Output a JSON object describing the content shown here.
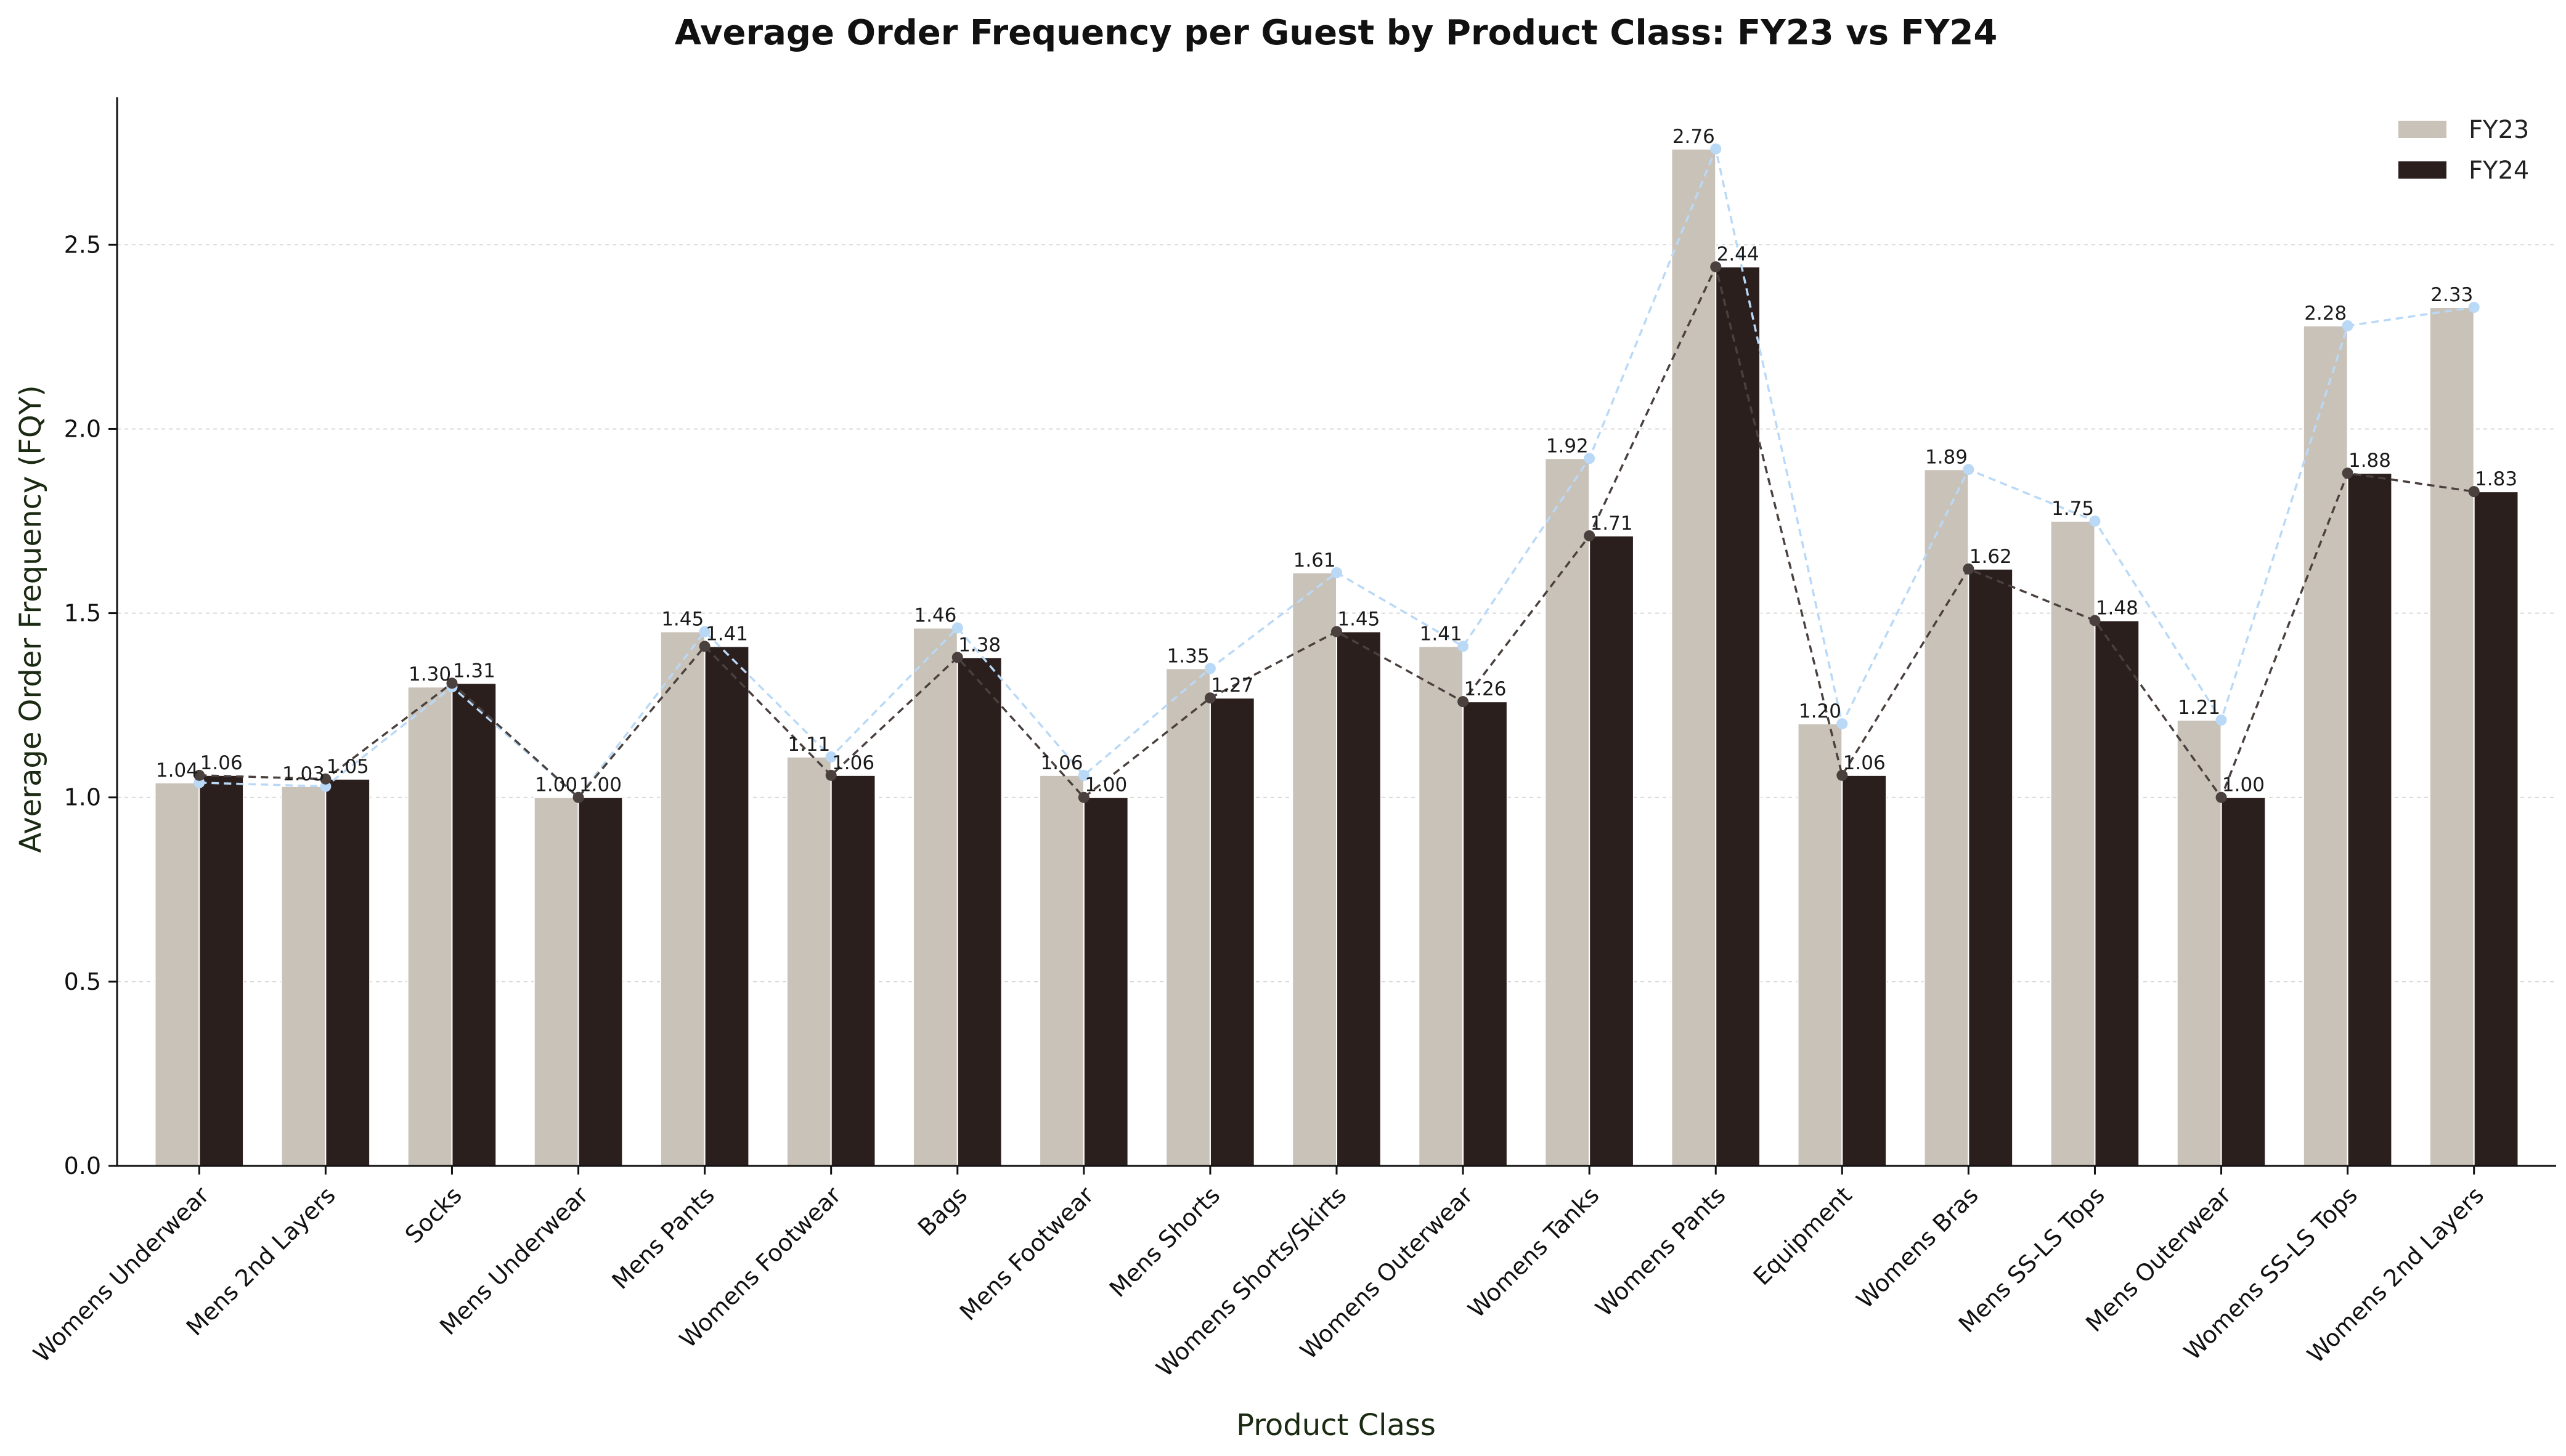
{
  "chart_data": {
    "type": "bar",
    "title": "Average Order Frequency per Guest by Product Class: FY23 vs FY24",
    "xlabel": "Product Class",
    "ylabel": "Average Order Frequency (FQY)",
    "ylim": [
      0,
      2.9
    ],
    "yticks": [
      "0.0",
      "0.5",
      "1.0",
      "1.5",
      "2.0",
      "2.5"
    ],
    "grid": "horizontal dashed",
    "legend_position": "top-right",
    "categories": [
      "Womens Underwear",
      "Mens 2nd Layers",
      "Socks",
      "Mens Underwear",
      "Mens Pants",
      "Womens Footwear",
      "Bags",
      "Mens Footwear",
      "Mens Shorts",
      "Womens Shorts/Skirts",
      "Womens Outerwear",
      "Womens Tanks",
      "Womens Pants",
      "Equipment",
      "Womens Bras",
      "Mens SS-LS Tops",
      "Mens Outerwear",
      "Womens SS-LS Tops",
      "Womens 2nd Layers"
    ],
    "series": [
      {
        "name": "FY23",
        "color": "#c9c2b8",
        "line_color": "#b9d9f7",
        "values": [
          1.04,
          1.03,
          1.3,
          1.0,
          1.45,
          1.11,
          1.46,
          1.06,
          1.35,
          1.61,
          1.41,
          1.92,
          2.76,
          1.2,
          1.89,
          1.75,
          1.21,
          2.28,
          2.33
        ],
        "labels": [
          "1.04",
          "1.03",
          "1.30",
          "1.00",
          "1.45",
          "1.11",
          "1.46",
          "1.06",
          "1.35",
          "1.61",
          "1.41",
          "1.92",
          "2.76",
          "1.20",
          "1.89",
          "1.75",
          "1.21",
          "2.28",
          "2.33"
        ]
      },
      {
        "name": "FY24",
        "color": "#2b1f1e",
        "line_color": "#4a403d",
        "values": [
          1.06,
          1.05,
          1.31,
          1.0,
          1.41,
          1.06,
          1.38,
          1.0,
          1.27,
          1.45,
          1.26,
          1.71,
          2.44,
          1.06,
          1.62,
          1.48,
          1.0,
          1.88,
          1.83
        ],
        "labels": [
          "1.06",
          "1.05",
          "1.31",
          "1.00",
          "1.41",
          "1.06",
          "1.38",
          "1.00",
          "1.27",
          "1.45",
          "1.26",
          "1.71",
          "2.44",
          "1.06",
          "1.62",
          "1.48",
          "1.00",
          "1.88",
          "1.83"
        ]
      }
    ]
  }
}
